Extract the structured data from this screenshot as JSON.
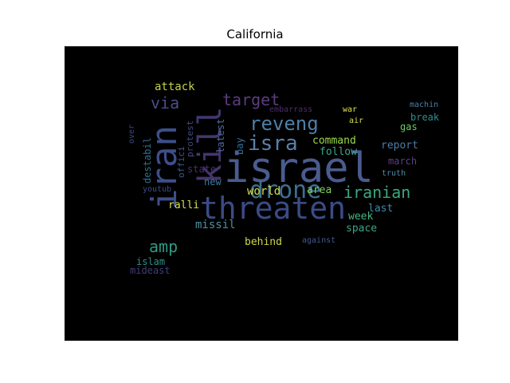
{
  "title": "California",
  "background_color": "#000000",
  "words": [
    {
      "text": "israel",
      "color": "#4a5b8f"
    },
    {
      "text": "threaten",
      "color": "#3b4b86"
    },
    {
      "text": "iran",
      "color": "#3d4f8a"
    },
    {
      "text": "kill",
      "color": "#44356f"
    },
    {
      "text": "drone",
      "color": "#3c6f90"
    },
    {
      "text": "isra",
      "color": "#5a80a8"
    },
    {
      "text": "reveng",
      "color": "#4e7fa6"
    },
    {
      "text": "target",
      "color": "#5a3d7e"
    },
    {
      "text": "via",
      "color": "#4a4d88"
    },
    {
      "text": "iranian",
      "color": "#3aa87e"
    },
    {
      "text": "amp",
      "color": "#2e9a82"
    },
    {
      "text": "attack",
      "color": "#c6d24a"
    },
    {
      "text": "missil",
      "color": "#4e8fa4"
    },
    {
      "text": "world",
      "color": "#d4de4c"
    },
    {
      "text": "ralli",
      "color": "#d9e14c"
    },
    {
      "text": "behind",
      "color": "#cfd64a"
    },
    {
      "text": "command",
      "color": "#9ad94a"
    },
    {
      "text": "follow",
      "color": "#3aa78a"
    },
    {
      "text": "area",
      "color": "#7fd159"
    },
    {
      "text": "space",
      "color": "#3da489"
    },
    {
      "text": "week",
      "color": "#47b580"
    },
    {
      "text": "last",
      "color": "#3b8ca7"
    },
    {
      "text": "report",
      "color": "#4d7ba8"
    },
    {
      "text": "march",
      "color": "#5c3f86"
    },
    {
      "text": "truth",
      "color": "#4c8aa6"
    },
    {
      "text": "break",
      "color": "#2f8d8c"
    },
    {
      "text": "gas",
      "color": "#6bcb63"
    },
    {
      "text": "machin",
      "color": "#4d7fa5"
    },
    {
      "text": "air",
      "color": "#d7df50"
    },
    {
      "text": "war",
      "color": "#e1e14e"
    },
    {
      "text": "embarrass",
      "color": "#4a2f6b"
    },
    {
      "text": "bay",
      "color": "#35709a"
    },
    {
      "text": "latest",
      "color": "#4a6b9a"
    },
    {
      "text": "protest",
      "color": "#3f4a80"
    },
    {
      "text": "offici",
      "color": "#3a5a8c"
    },
    {
      "text": "destabil",
      "color": "#2e6f8e"
    },
    {
      "text": "state",
      "color": "#4a2e72"
    },
    {
      "text": "new",
      "color": "#3d7a9e"
    },
    {
      "text": "youtub",
      "color": "#3b4d86"
    },
    {
      "text": "islam",
      "color": "#2f8f8a"
    },
    {
      "text": "mideast",
      "color": "#3e3e78"
    },
    {
      "text": "against",
      "color": "#3f5a8e"
    },
    {
      "text": "over",
      "color": "#3a4a7e"
    }
  ]
}
